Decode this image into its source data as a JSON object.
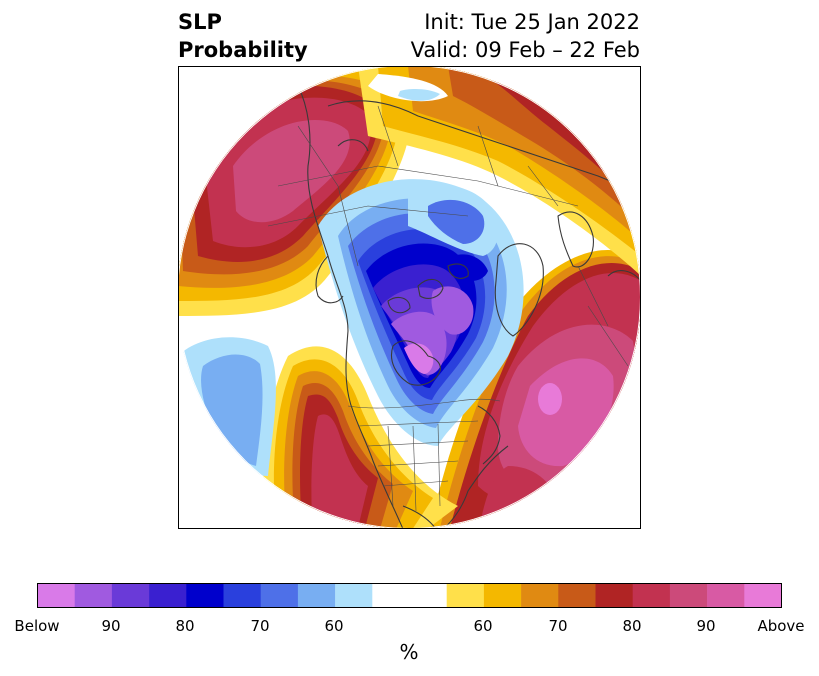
{
  "header": {
    "variable_line1": "SLP",
    "variable_line2": "Probability",
    "init": "Init: Tue 25 Jan 2022",
    "valid": "Valid: 09 Feb – 22 Feb"
  },
  "colorbar": {
    "unit": "%",
    "tick_labels": [
      "Below",
      "90",
      "80",
      "70",
      "60",
      "60",
      "70",
      "80",
      "90",
      "Above"
    ],
    "below_colors": [
      "#d97ae8",
      "#a05ae0",
      "#6a3ad8",
      "#3a20d0",
      "#0000cc",
      "#2a40dd",
      "#4e70e8",
      "#78aef2",
      "#aee0fb"
    ],
    "neutral_color": "#ffffff",
    "above_colors": [
      "#ffe04a",
      "#f4b800",
      "#e08a12",
      "#c85a18",
      "#b02424",
      "#c23250",
      "#cc4a7a",
      "#d85aa4",
      "#e87ad8"
    ]
  },
  "map": {
    "projection": "north-polar-stereographic",
    "features": [
      "coastlines",
      "country-borders",
      "state-borders"
    ],
    "regions": [
      {
        "name": "north-pacific-high",
        "category": "above",
        "peak": "90"
      },
      {
        "name": "north-atlantic-high",
        "category": "above",
        "peak": "Above"
      },
      {
        "name": "central-us-high",
        "category": "above",
        "peak": "90"
      },
      {
        "name": "siberia-high",
        "category": "above",
        "peak": "80"
      },
      {
        "name": "canada-arctic-low",
        "category": "below",
        "peak": "Below"
      },
      {
        "name": "subtropical-pacific-low",
        "category": "below",
        "peak": "70"
      },
      {
        "name": "north-pole-low",
        "category": "below",
        "peak": "70"
      }
    ]
  }
}
